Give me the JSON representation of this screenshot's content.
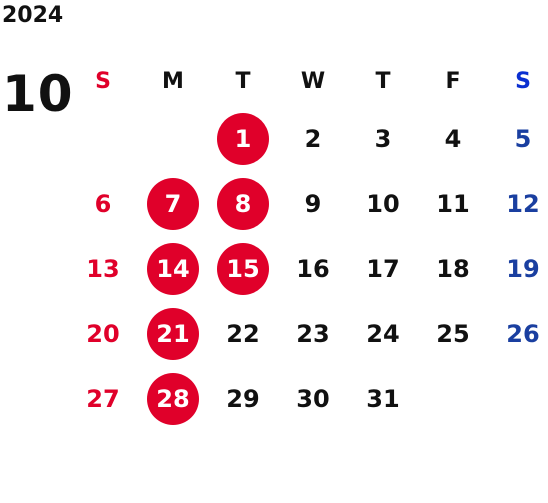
{
  "year": "2024",
  "month": "10",
  "colors": {
    "sunday": "#e0002a",
    "saturday": "#1a3fa0",
    "saturday_header": "#0b2fd1",
    "holiday_circle": "#e0002a",
    "weekday": "#111111"
  },
  "weekdays": [
    "S",
    "M",
    "T",
    "W",
    "T",
    "F",
    "S"
  ],
  "weeks": [
    [
      "",
      "",
      "1",
      "2",
      "3",
      "4",
      "5"
    ],
    [
      "6",
      "7",
      "8",
      "9",
      "10",
      "11",
      "12"
    ],
    [
      "13",
      "14",
      "15",
      "16",
      "17",
      "18",
      "19"
    ],
    [
      "20",
      "21",
      "22",
      "23",
      "24",
      "25",
      "26"
    ],
    [
      "27",
      "28",
      "29",
      "30",
      "31",
      "",
      ""
    ]
  ],
  "highlighted_days": [
    "1",
    "7",
    "8",
    "14",
    "15",
    "21",
    "28"
  ]
}
